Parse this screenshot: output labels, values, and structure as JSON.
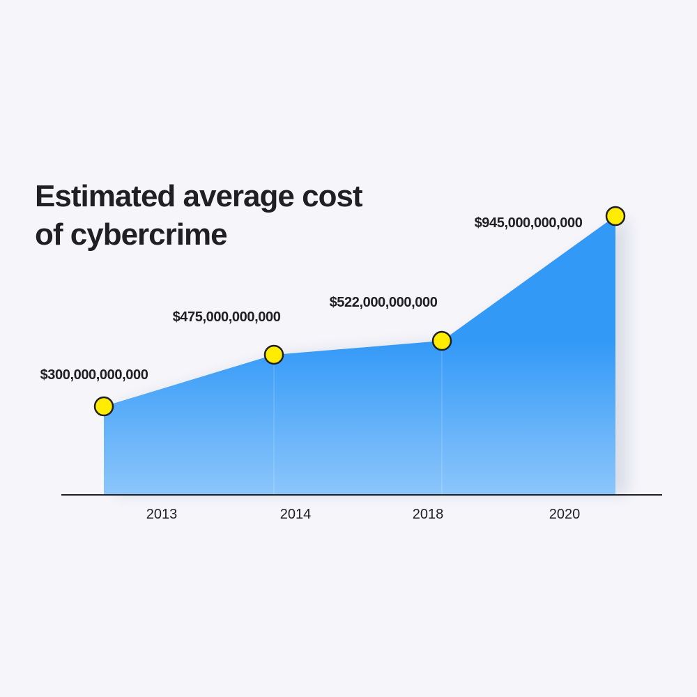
{
  "chart_data": {
    "type": "area",
    "title_lines": [
      "Estimated average cost",
      "of cybercrime"
    ],
    "categories": [
      "2013",
      "2014",
      "2018",
      "2020"
    ],
    "values": [
      300000000000,
      475000000000,
      522000000000,
      945000000000
    ],
    "value_labels": [
      "$300,000,000,000",
      "$475,000,000,000",
      "$522,000,000,000",
      "$945,000,000,000"
    ],
    "ylim": [
      0,
      945000000000
    ],
    "grid": false,
    "legend": "none",
    "colors": {
      "area_top": "#3399f7",
      "area_bottom": "#8cc6fb",
      "marker_fill": "#ffec00",
      "marker_stroke": "#1f1f24",
      "axis": "#1f1f24",
      "text": "#1f1f24",
      "background": "#f5f5fa"
    }
  }
}
